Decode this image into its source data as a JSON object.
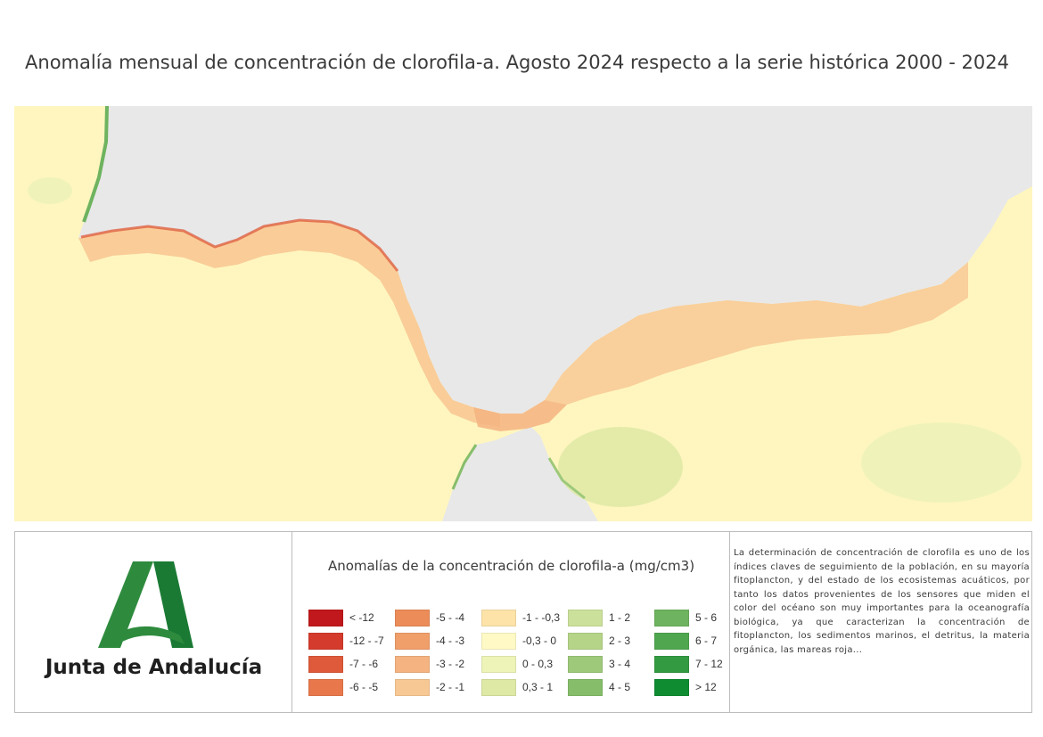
{
  "title": "Anomalía mensual de concentración de clorofila-a. Agosto 2024 respecto a la serie histórica 2000 - 2024",
  "logo": {
    "text": "Junta de Andalucía",
    "color": "#2e8b3e"
  },
  "legend": {
    "title": "Anomalías de la concentración de clorofila-a (mg/cm3)",
    "items": [
      {
        "label": "< -12",
        "color": "#c0181c"
      },
      {
        "label": "-12 - -7",
        "color": "#d43b2c"
      },
      {
        "label": "-7 - -6",
        "color": "#de5a3a"
      },
      {
        "label": "-6 - -5",
        "color": "#e8784b"
      },
      {
        "label": "-5 - -4",
        "color": "#ec8c58"
      },
      {
        "label": "-4 - -3",
        "color": "#f09e6a"
      },
      {
        "label": "-3 - -2",
        "color": "#f4b380"
      },
      {
        "label": "-2 - -1",
        "color": "#f8c894"
      },
      {
        "label": "-1 - -0,3",
        "color": "#fde3a8"
      },
      {
        "label": "-0,3 - 0",
        "color": "#fffac5"
      },
      {
        "label": "0 - 0,3",
        "color": "#eef3b8"
      },
      {
        "label": "0,3 - 1",
        "color": "#dde9a4"
      },
      {
        "label": "1 - 2",
        "color": "#cbe09a"
      },
      {
        "label": "2 - 3",
        "color": "#b5d488"
      },
      {
        "label": "3 - 4",
        "color": "#9ec97a"
      },
      {
        "label": "4 - 5",
        "color": "#86bd6a"
      },
      {
        "label": "5 - 6",
        "color": "#6eb35f"
      },
      {
        "label": "6 - 7",
        "color": "#4fa64f"
      },
      {
        "label": "7 - 12",
        "color": "#339a41"
      },
      {
        "label": "> 12",
        "color": "#0f8c32"
      }
    ]
  },
  "description": "La determinación de concentración de clorofila es uno de los índices claves de seguimiento de la población, en su mayoría fitoplancton, y del estado de los ecosistemas acuáticos, por tanto los datos provenientes de los sensores que miden el color del océano son muy importantes para la oceanografía biológica, ya que caracterizan la concentración de fitoplancton, los sedimentos marinos, el detritus, la materia orgánica, las mareas roja...",
  "map": {
    "land_color": "#e8e8e8",
    "sea_color": "#fff6bf"
  }
}
